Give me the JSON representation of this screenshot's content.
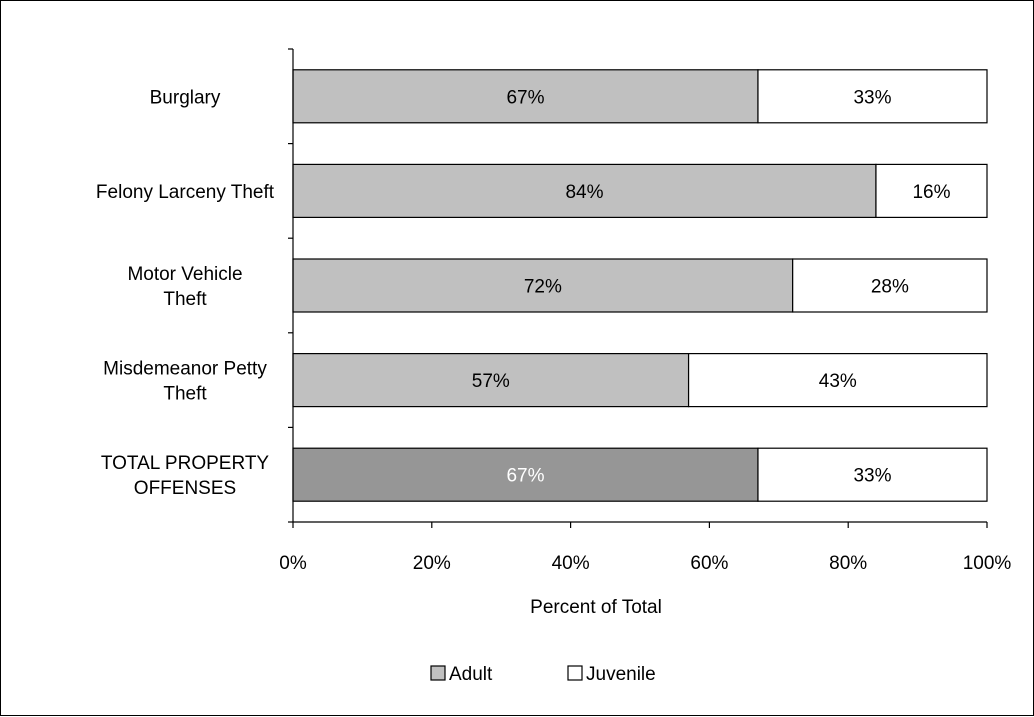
{
  "chart_data": {
    "type": "bar",
    "orientation": "horizontal",
    "stacked": true,
    "percent": true,
    "categories": [
      [
        "Burglary"
      ],
      [
        "Felony Larceny Theft"
      ],
      [
        "Motor Vehicle",
        "Theft"
      ],
      [
        "Misdemeanor Petty",
        "Theft"
      ],
      [
        "TOTAL PROPERTY",
        "OFFENSES"
      ]
    ],
    "series": [
      {
        "name": "Adult",
        "values": [
          67,
          84,
          72,
          57,
          67
        ],
        "labels": [
          "67%",
          "84%",
          "72%",
          "57%",
          "67%"
        ],
        "colors": [
          "#c0c0c0",
          "#c0c0c0",
          "#c0c0c0",
          "#c0c0c0",
          "#969696"
        ],
        "label_colors": [
          "#000000",
          "#000000",
          "#000000",
          "#000000",
          "#ffffff"
        ]
      },
      {
        "name": "Juvenile",
        "values": [
          33,
          16,
          28,
          43,
          33
        ],
        "labels": [
          "33%",
          "16%",
          "28%",
          "43%",
          "33%"
        ],
        "colors": [
          "#ffffff",
          "#ffffff",
          "#ffffff",
          "#ffffff",
          "#ffffff"
        ],
        "label_colors": [
          "#000000",
          "#000000",
          "#000000",
          "#000000",
          "#000000"
        ]
      }
    ],
    "xlim": [
      0,
      100
    ],
    "xticks": [
      "0%",
      "20%",
      "40%",
      "60%",
      "80%",
      "100%"
    ],
    "xlabel": "Percent of Total",
    "ylabel": "",
    "title": "",
    "grid": false,
    "legend_position": "bottom",
    "legend": [
      {
        "name": "Adult",
        "color": "#c0c0c0"
      },
      {
        "name": "Juvenile",
        "color": "#ffffff"
      }
    ]
  }
}
